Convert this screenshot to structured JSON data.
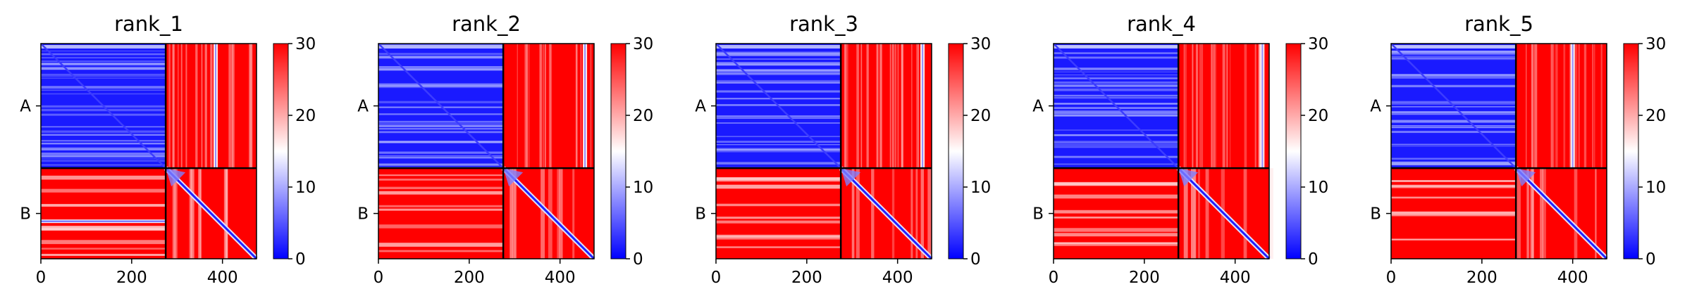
{
  "chart_data": [
    {
      "type": "heatmap",
      "title": "rank_1",
      "x_ticks": [
        0,
        200,
        400
      ],
      "y_ticks": [
        "A",
        "B"
      ],
      "chains": [
        {
          "name": "A",
          "length": 275
        },
        {
          "name": "B",
          "length": 200
        }
      ],
      "total_length": 475,
      "colorbar": {
        "min": 0,
        "max": 30,
        "ticks": [
          0,
          10,
          20,
          30
        ],
        "colors": [
          "#0000ff",
          "#ffffff",
          "#ff0000"
        ]
      },
      "inter_chain_band": 385,
      "intra_b_stripe": 290
    },
    {
      "type": "heatmap",
      "title": "rank_2",
      "x_ticks": [
        0,
        200,
        400
      ],
      "y_ticks": [
        "A",
        "B"
      ],
      "chains": [
        {
          "name": "A",
          "length": 275
        },
        {
          "name": "B",
          "length": 200
        }
      ],
      "total_length": 475,
      "colorbar": {
        "min": 0,
        "max": 30,
        "ticks": [
          0,
          10,
          20,
          30
        ],
        "colors": [
          "#0000ff",
          "#ffffff",
          "#ff0000"
        ]
      },
      "inter_chain_band": 455,
      "intra_b_stripe": 350
    },
    {
      "type": "heatmap",
      "title": "rank_3",
      "x_ticks": [
        0,
        200,
        400
      ],
      "y_ticks": [
        "A",
        "B"
      ],
      "chains": [
        {
          "name": "A",
          "length": 275
        },
        {
          "name": "B",
          "length": 200
        }
      ],
      "total_length": 475,
      "colorbar": {
        "min": 0,
        "max": 30,
        "ticks": [
          0,
          10,
          20,
          30
        ],
        "colors": [
          "#0000ff",
          "#ffffff",
          "#ff0000"
        ]
      },
      "inter_chain_band": 455,
      "intra_b_stripe": 370
    },
    {
      "type": "heatmap",
      "title": "rank_4",
      "x_ticks": [
        0,
        200,
        400
      ],
      "y_ticks": [
        "A",
        "B"
      ],
      "chains": [
        {
          "name": "A",
          "length": 275
        },
        {
          "name": "B",
          "length": 200
        }
      ],
      "total_length": 475,
      "colorbar": {
        "min": 0,
        "max": 30,
        "ticks": [
          0,
          10,
          20,
          30
        ],
        "colors": [
          "#0000ff",
          "#ffffff",
          "#ff0000"
        ]
      },
      "inter_chain_band": 460,
      "intra_b_stripe": 400
    },
    {
      "type": "heatmap",
      "title": "rank_5",
      "x_ticks": [
        0,
        200,
        400
      ],
      "y_ticks": [
        "A",
        "B"
      ],
      "chains": [
        {
          "name": "A",
          "length": 275
        },
        {
          "name": "B",
          "length": 200
        }
      ],
      "total_length": 475,
      "colorbar": {
        "min": 0,
        "max": 30,
        "ticks": [
          0,
          10,
          20,
          30
        ],
        "colors": [
          "#0000ff",
          "#ffffff",
          "#ff0000"
        ]
      },
      "inter_chain_band": 400,
      "intra_b_stripe": 340
    }
  ]
}
